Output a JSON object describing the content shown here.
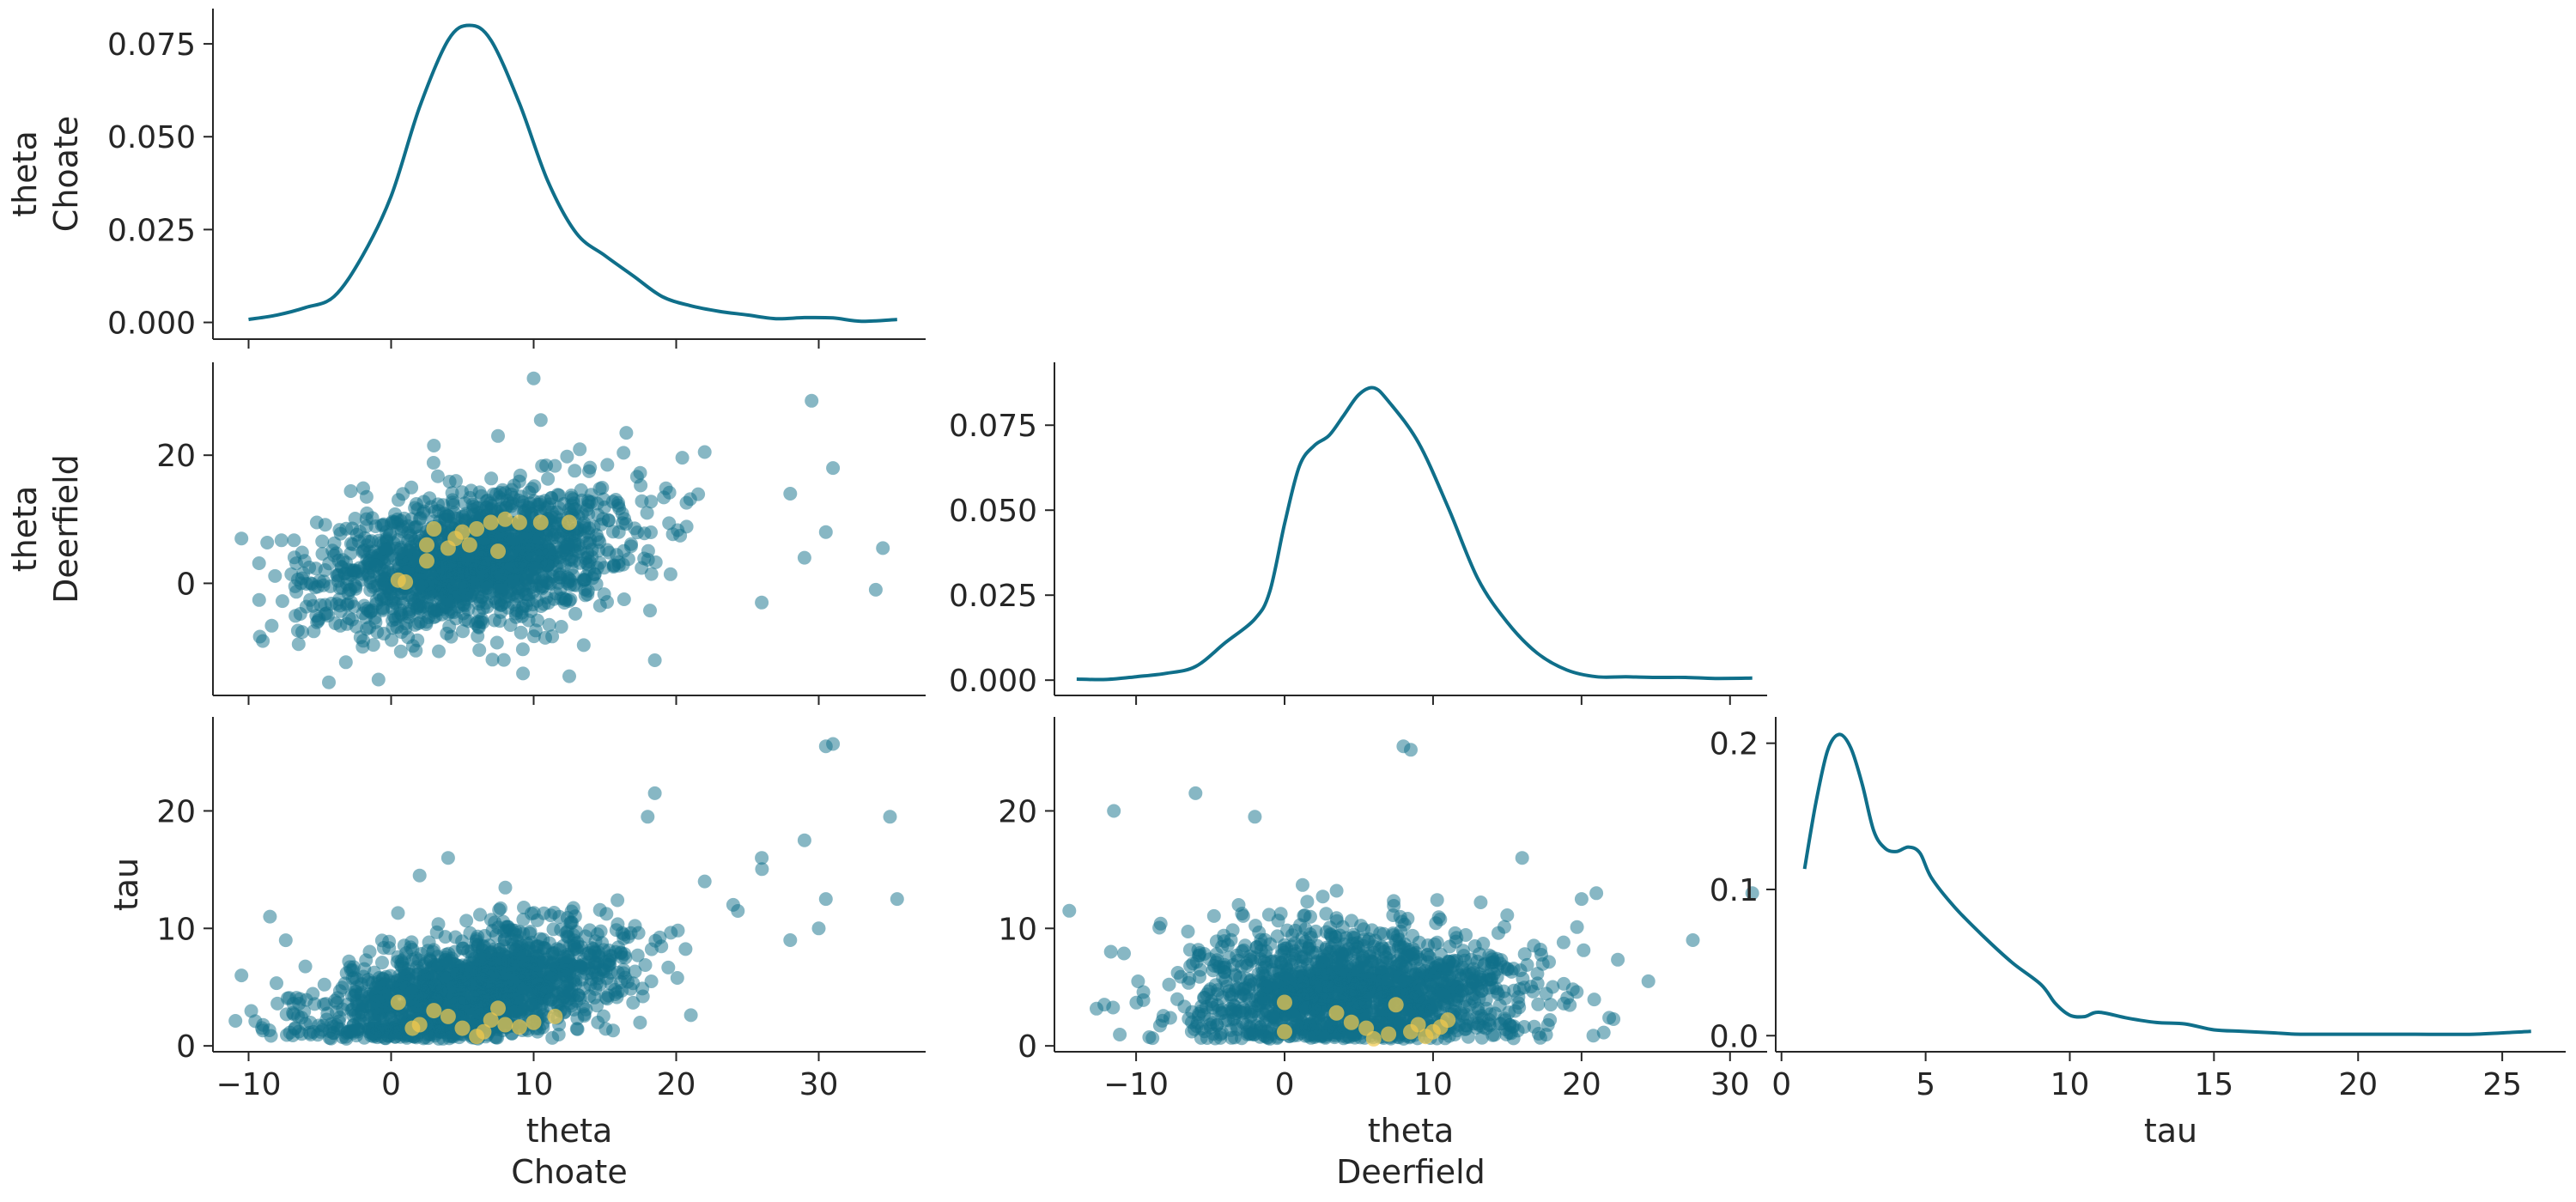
{
  "colors": {
    "points": "#0f6f8a",
    "divergences": "#f2c94c",
    "kde": "#0f6f8a"
  },
  "chart_data": [
    {
      "id": "kde-theta-choate",
      "type": "line",
      "title": "",
      "xlabel": "",
      "ylabel_lines": [
        "theta",
        "Choate"
      ],
      "xlim": [
        -12.5,
        37.5
      ],
      "ylim": [
        -0.0045,
        0.0845
      ],
      "xticks": [
        -10,
        0,
        10,
        20,
        30
      ],
      "xtick_labels": [
        "",
        "",
        "",
        "",
        ""
      ],
      "yticks": [
        0.0,
        0.025,
        0.05,
        0.075
      ],
      "ytick_labels": [
        "0.000",
        "0.025",
        "0.050",
        "0.075"
      ],
      "x": [
        -10,
        -8,
        -6,
        -4,
        -2,
        0,
        2,
        4,
        5.5,
        7,
        9,
        11,
        13,
        15,
        17,
        19,
        21,
        23,
        25,
        27,
        29,
        31,
        33,
        35.5
      ],
      "y": [
        0.0008,
        0.002,
        0.004,
        0.007,
        0.018,
        0.034,
        0.058,
        0.076,
        0.08,
        0.076,
        0.059,
        0.038,
        0.024,
        0.018,
        0.0125,
        0.007,
        0.0045,
        0.003,
        0.002,
        0.001,
        0.0013,
        0.0012,
        0.0003,
        0.0008
      ]
    },
    {
      "id": "scatter-choate-deerfield",
      "type": "scatter",
      "xlabel": "",
      "ylabel_lines": [
        "theta",
        "Deerfield"
      ],
      "xlim": [
        -12.5,
        37.5
      ],
      "ylim": [
        -17.5,
        34.5
      ],
      "xticks": [
        -10,
        0,
        10,
        20,
        30
      ],
      "xtick_labels": [
        "",
        "",
        "",
        "",
        ""
      ],
      "yticks": [
        0,
        20
      ],
      "ytick_labels": [
        "0",
        "20"
      ],
      "n_points": 1600,
      "x_mean": 5.5,
      "x_sd": 5.5,
      "y_mean": 3.5,
      "y_sd": 5.5,
      "corr": 0.35,
      "outliers": [
        [
          10,
          32
        ],
        [
          29.5,
          28.5
        ],
        [
          34.5,
          5.5
        ],
        [
          34,
          -1
        ],
        [
          30.5,
          8
        ],
        [
          28,
          14
        ],
        [
          31,
          18
        ],
        [
          12.5,
          -14.5
        ],
        [
          18.5,
          -12
        ],
        [
          -10.5,
          7
        ],
        [
          -9,
          -9
        ],
        [
          26,
          -3
        ],
        [
          22,
          20.5
        ],
        [
          16.5,
          23.5
        ],
        [
          10.5,
          25.5
        ],
        [
          7.5,
          23
        ],
        [
          3,
          21.5
        ],
        [
          29,
          4
        ]
      ],
      "divergences": [
        [
          0.5,
          0.5
        ],
        [
          1,
          0.2
        ],
        [
          2.5,
          3.5
        ],
        [
          3,
          8.5
        ],
        [
          4.5,
          7
        ],
        [
          5.5,
          6
        ],
        [
          5,
          8
        ],
        [
          7,
          9.5
        ],
        [
          8,
          10
        ],
        [
          9,
          9.5
        ],
        [
          10.5,
          9.5
        ],
        [
          12.5,
          9.5
        ],
        [
          6,
          8.5
        ],
        [
          7.5,
          5
        ],
        [
          4,
          5.5
        ],
        [
          2.5,
          6
        ]
      ]
    },
    {
      "id": "kde-theta-deerfield",
      "type": "line",
      "xlabel": "",
      "ylabel_lines": [],
      "xlim": [
        -15.5,
        32.5
      ],
      "ylim": [
        -0.0045,
        0.0935
      ],
      "xticks": [
        -10,
        0,
        10,
        20,
        30
      ],
      "xtick_labels": [
        "",
        "",
        "",
        "",
        ""
      ],
      "yticks": [
        0.0,
        0.025,
        0.05,
        0.075
      ],
      "ytick_labels": [
        "0.000",
        "0.025",
        "0.050",
        "0.075"
      ],
      "x": [
        -14,
        -12,
        -10,
        -8,
        -6,
        -4,
        -2,
        -1,
        0,
        1,
        2,
        3,
        4,
        5,
        6,
        7,
        9,
        11,
        13,
        15,
        17,
        19,
        21,
        23,
        25,
        27,
        29,
        31.5
      ],
      "y": [
        0.0003,
        0.0002,
        0.001,
        0.002,
        0.004,
        0.011,
        0.018,
        0.026,
        0.046,
        0.063,
        0.069,
        0.072,
        0.078,
        0.084,
        0.086,
        0.082,
        0.07,
        0.051,
        0.03,
        0.017,
        0.008,
        0.003,
        0.001,
        0.001,
        0.0008,
        0.0008,
        0.0005,
        0.0006
      ]
    },
    {
      "id": "scatter-choate-tau",
      "type": "scatter",
      "xlabel_lines": [
        "theta",
        "Choate"
      ],
      "ylabel_lines": [
        "tau"
      ],
      "xlim": [
        -12.5,
        37.5
      ],
      "ylim": [
        -0.5,
        28
      ],
      "xticks": [
        -10,
        0,
        10,
        20,
        30
      ],
      "xtick_labels": [
        "−10",
        "0",
        "10",
        "20",
        "30"
      ],
      "yticks": [
        0,
        10,
        20
      ],
      "ytick_labels": [
        "0",
        "10",
        "20"
      ],
      "n_points": 1600,
      "x_mean": 5.5,
      "x_sd": 5.5,
      "y_mean": 4.5,
      "y_sd": 2.8,
      "corr": 0.45,
      "outliers": [
        [
          30.5,
          25.5
        ],
        [
          31,
          25.7
        ],
        [
          35,
          19.5
        ],
        [
          35.5,
          12.5
        ],
        [
          29,
          17.5
        ],
        [
          30.5,
          12.5
        ],
        [
          18.5,
          21.5
        ],
        [
          18,
          19.5
        ],
        [
          -8.5,
          11
        ],
        [
          -10.5,
          6
        ],
        [
          30,
          10
        ],
        [
          28,
          9
        ],
        [
          26,
          16
        ],
        [
          22,
          14
        ],
        [
          24,
          12
        ],
        [
          4,
          16
        ],
        [
          2,
          14.5
        ]
      ],
      "divergences": [
        [
          0.5,
          3.7
        ],
        [
          1.5,
          1.5
        ],
        [
          2,
          1.8
        ],
        [
          3,
          3
        ],
        [
          4,
          2.5
        ],
        [
          5,
          1.5
        ],
        [
          6,
          0.8
        ],
        [
          6.5,
          1.2
        ],
        [
          7,
          2.2
        ],
        [
          7.5,
          3.2
        ],
        [
          8,
          1.8
        ],
        [
          9,
          1.6
        ],
        [
          10,
          2
        ],
        [
          11.5,
          2.5
        ]
      ]
    },
    {
      "id": "scatter-deerfield-tau",
      "type": "scatter",
      "xlabel_lines": [
        "theta",
        "Deerfield"
      ],
      "ylabel_lines": [],
      "xlim": [
        -15.5,
        32.5
      ],
      "ylim": [
        -0.5,
        28
      ],
      "xticks": [
        -10,
        0,
        10,
        20,
        30
      ],
      "xtick_labels": [
        "−10",
        "0",
        "10",
        "20",
        "30"
      ],
      "yticks": [
        0,
        10,
        20
      ],
      "ytick_labels": [
        "0",
        "10",
        "20"
      ],
      "n_points": 1600,
      "x_mean": 4.5,
      "x_sd": 5.5,
      "y_mean": 4.5,
      "y_sd": 2.8,
      "corr": 0.05,
      "outliers": [
        [
          8,
          25.5
        ],
        [
          8.5,
          25.2
        ],
        [
          -14.5,
          11.5
        ],
        [
          -11.5,
          20
        ],
        [
          -6,
          21.5
        ],
        [
          -2,
          19.5
        ],
        [
          31.5,
          13
        ],
        [
          27.5,
          9
        ],
        [
          24.5,
          5.5
        ],
        [
          20,
          12.5
        ],
        [
          21,
          13
        ],
        [
          16,
          16
        ]
      ],
      "divergences": [
        [
          0,
          3.7
        ],
        [
          0,
          1.2
        ],
        [
          3.5,
          2.8
        ],
        [
          4.5,
          2
        ],
        [
          5.5,
          1.5
        ],
        [
          6,
          0.6
        ],
        [
          7,
          1
        ],
        [
          7.5,
          3.5
        ],
        [
          8.5,
          1.2
        ],
        [
          9,
          1.8
        ],
        [
          9.5,
          0.8
        ],
        [
          10,
          1.2
        ],
        [
          10.5,
          1.6
        ],
        [
          11,
          2.2
        ]
      ]
    },
    {
      "id": "kde-tau",
      "type": "line",
      "xlabel_lines": [
        "tau"
      ],
      "ylabel_lines": [],
      "xlim": [
        -0.2,
        27.2
      ],
      "ylim": [
        -0.011,
        0.218
      ],
      "xticks": [
        0,
        5,
        10,
        15,
        20,
        25
      ],
      "xtick_labels": [
        "0",
        "5",
        "10",
        "15",
        "20",
        "25"
      ],
      "yticks": [
        0.0,
        0.1,
        0.2
      ],
      "ytick_labels": [
        "0.0",
        "0.1",
        "0.2"
      ],
      "x": [
        0.8,
        1.2,
        1.6,
        2.0,
        2.4,
        2.8,
        3.2,
        3.6,
        4.0,
        4.4,
        4.8,
        5.2,
        6,
        7,
        8,
        9,
        9.5,
        10,
        10.5,
        11,
        12,
        13,
        14,
        15,
        16,
        17,
        18,
        20,
        22,
        24,
        26
      ],
      "y": [
        0.114,
        0.16,
        0.195,
        0.206,
        0.197,
        0.172,
        0.14,
        0.128,
        0.126,
        0.129,
        0.125,
        0.108,
        0.088,
        0.068,
        0.05,
        0.035,
        0.022,
        0.014,
        0.013,
        0.016,
        0.012,
        0.009,
        0.008,
        0.004,
        0.003,
        0.002,
        0.001,
        0.001,
        0.001,
        0.001,
        0.003
      ]
    }
  ]
}
